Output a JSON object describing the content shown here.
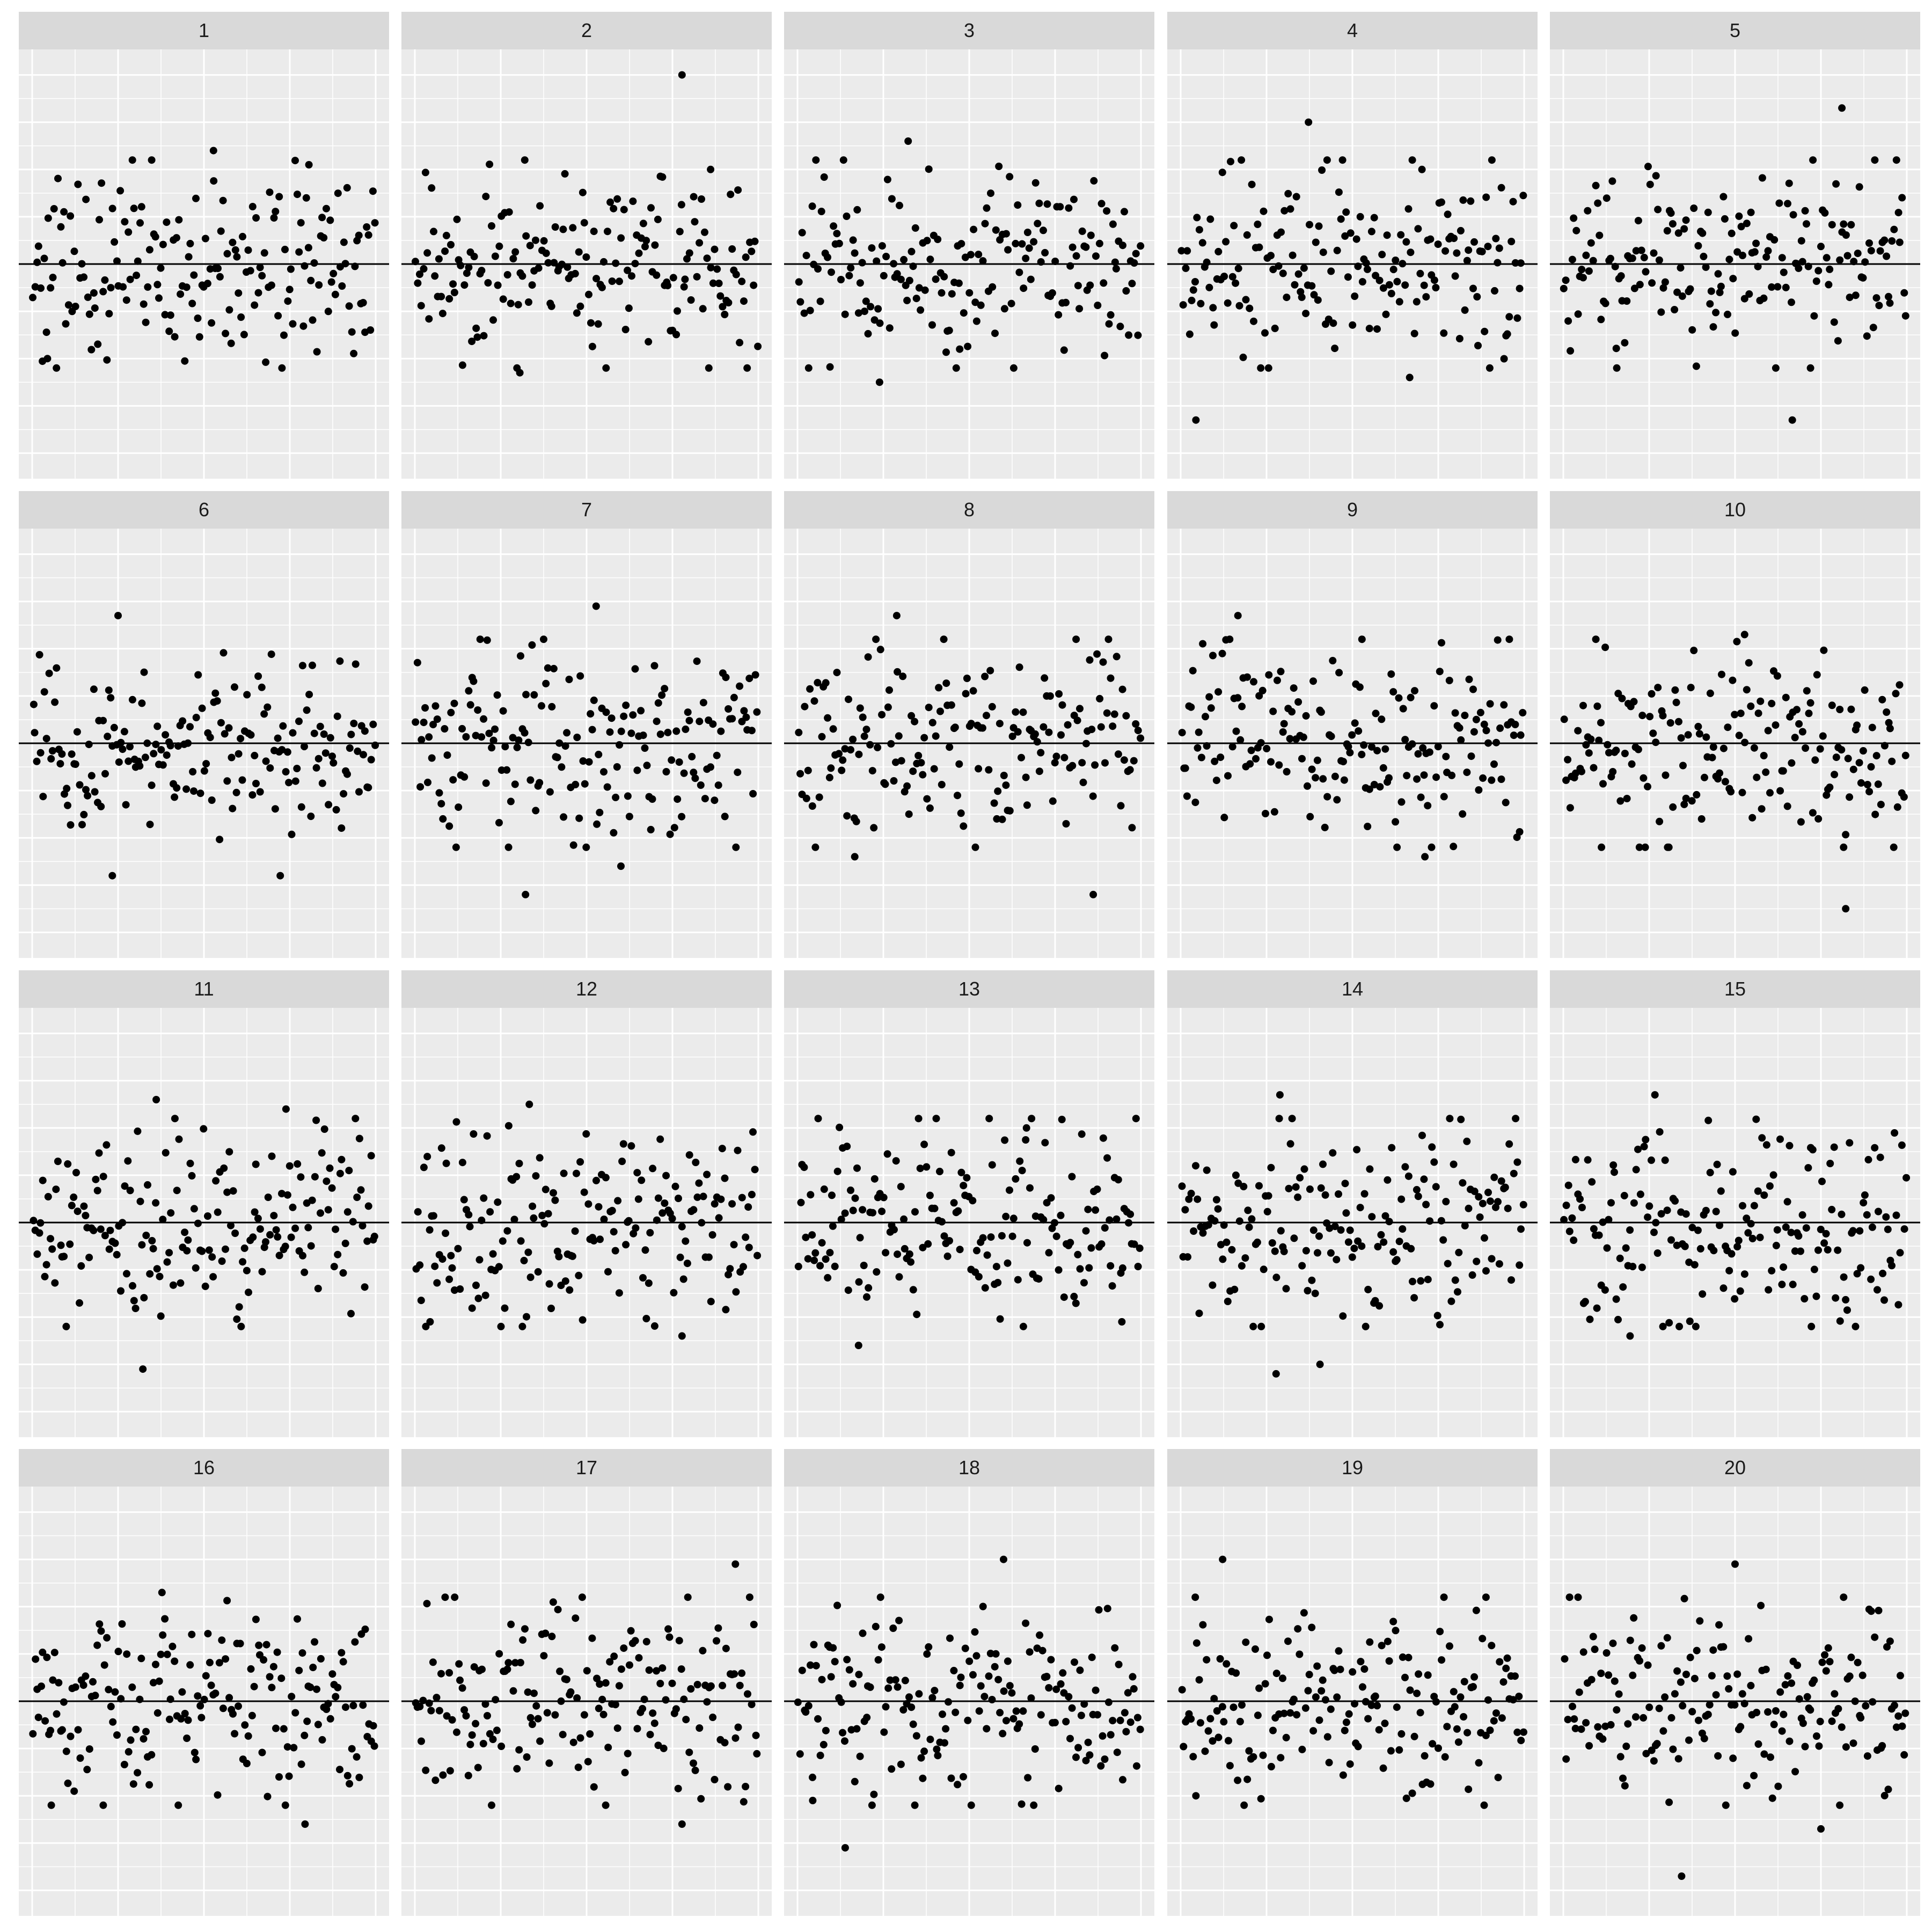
{
  "chart_data": {
    "type": "scatter",
    "layout": "facet-grid",
    "rows": 4,
    "cols": 5,
    "n_points_per_panel": 180,
    "x_range": [
      0,
      180
    ],
    "y_range": [
      -4.2,
      4.2
    ],
    "reference_line_y": 0,
    "grid": true,
    "xlabel": "",
    "ylabel": "",
    "panels": [
      {
        "label": "1",
        "extremes": [
          {
            "x": 8,
            "y": -2.0
          },
          {
            "x": 95,
            "y": 2.4
          },
          {
            "x": 145,
            "y": 2.1
          }
        ],
        "seed": 101
      },
      {
        "label": "2",
        "extremes": [
          {
            "x": 140,
            "y": 4.0
          },
          {
            "x": 55,
            "y": -2.3
          },
          {
            "x": 155,
            "y": 2.0
          }
        ],
        "seed": 202
      },
      {
        "label": "3",
        "extremes": [
          {
            "x": 58,
            "y": 2.6
          },
          {
            "x": 43,
            "y": -2.5
          },
          {
            "x": 85,
            "y": -1.8
          }
        ],
        "seed": 303
      },
      {
        "label": "4",
        "extremes": [
          {
            "x": 67,
            "y": 3.0
          },
          {
            "x": 8,
            "y": -3.3
          },
          {
            "x": 120,
            "y": -2.4
          }
        ],
        "seed": 404
      },
      {
        "label": "5",
        "extremes": [
          {
            "x": 146,
            "y": 3.3
          },
          {
            "x": 120,
            "y": -3.3
          },
          {
            "x": 28,
            "y": -2.2
          }
        ],
        "seed": 505
      },
      {
        "label": "6",
        "extremes": [
          {
            "x": 45,
            "y": 2.7
          },
          {
            "x": 42,
            "y": -2.8
          },
          {
            "x": 130,
            "y": -2.8
          }
        ],
        "seed": 606
      },
      {
        "label": "7",
        "extremes": [
          {
            "x": 95,
            "y": 2.9
          },
          {
            "x": 58,
            "y": -3.2
          },
          {
            "x": 108,
            "y": -2.6
          }
        ],
        "seed": 707
      },
      {
        "label": "8",
        "extremes": [
          {
            "x": 52,
            "y": 2.7
          },
          {
            "x": 155,
            "y": -3.2
          },
          {
            "x": 30,
            "y": -2.4
          }
        ],
        "seed": 808
      },
      {
        "label": "9",
        "extremes": [
          {
            "x": 30,
            "y": 2.7
          },
          {
            "x": 128,
            "y": -2.4
          },
          {
            "x": 95,
            "y": 2.2
          }
        ],
        "seed": 909
      },
      {
        "label": "10",
        "extremes": [
          {
            "x": 148,
            "y": -3.5
          },
          {
            "x": 20,
            "y": -2.2
          },
          {
            "x": 95,
            "y": 2.3
          }
        ],
        "seed": 1010
      },
      {
        "label": "11",
        "extremes": [
          {
            "x": 58,
            "y": -3.1
          },
          {
            "x": 65,
            "y": 2.6
          },
          {
            "x": 133,
            "y": 2.4
          }
        ],
        "seed": 1111
      },
      {
        "label": "12",
        "extremes": [
          {
            "x": 60,
            "y": 2.5
          },
          {
            "x": 140,
            "y": -2.4
          },
          {
            "x": 8,
            "y": -2.1
          }
        ],
        "seed": 1212
      },
      {
        "label": "13",
        "extremes": [
          {
            "x": 32,
            "y": -2.6
          },
          {
            "x": 120,
            "y": 2.0
          },
          {
            "x": 170,
            "y": -2.1
          }
        ],
        "seed": 1313
      },
      {
        "label": "14",
        "extremes": [
          {
            "x": 52,
            "y": 2.7
          },
          {
            "x": 50,
            "y": -3.2
          },
          {
            "x": 73,
            "y": -3.0
          }
        ],
        "seed": 1414
      },
      {
        "label": "15",
        "extremes": [
          {
            "x": 48,
            "y": 2.7
          },
          {
            "x": 35,
            "y": -2.4
          },
          {
            "x": 130,
            "y": -2.2
          }
        ],
        "seed": 1515
      },
      {
        "label": "16",
        "extremes": [
          {
            "x": 143,
            "y": -2.6
          },
          {
            "x": 10,
            "y": -2.2
          },
          {
            "x": 68,
            "y": 2.3
          }
        ],
        "seed": 1616
      },
      {
        "label": "17",
        "extremes": [
          {
            "x": 168,
            "y": 2.9
          },
          {
            "x": 140,
            "y": -2.6
          },
          {
            "x": 100,
            "y": -2.2
          }
        ],
        "seed": 1717
      },
      {
        "label": "18",
        "extremes": [
          {
            "x": 108,
            "y": 3.0
          },
          {
            "x": 25,
            "y": -3.1
          },
          {
            "x": 8,
            "y": -2.1
          }
        ],
        "seed": 1818
      },
      {
        "label": "19",
        "extremes": [
          {
            "x": 22,
            "y": 3.0
          },
          {
            "x": 8,
            "y": -2.0
          },
          {
            "x": 160,
            "y": 2.2
          }
        ],
        "seed": 1919
      },
      {
        "label": "20",
        "extremes": [
          {
            "x": 62,
            "y": -3.7
          },
          {
            "x": 90,
            "y": 2.9
          },
          {
            "x": 135,
            "y": -2.7
          }
        ],
        "seed": 2020
      }
    ]
  },
  "colors": {
    "panel_background": "#ebebeb",
    "grid_line": "#ffffff",
    "strip_background": "#d9d9d9",
    "point": "#000000",
    "reference_line": "#000000"
  }
}
